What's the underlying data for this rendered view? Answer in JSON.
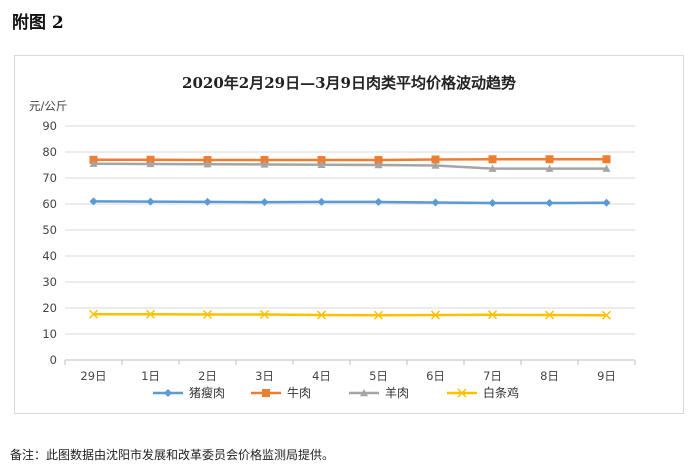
{
  "page": {
    "heading": "附图 2",
    "footnote": "备注：此图数据由沈阳市发展和改革委员会价格监测局提供。"
  },
  "chart_data": {
    "type": "line",
    "title": "2020年2月29日—3月9日肉类平均价格波动趋势",
    "ylabel": "元/公斤",
    "xlabel": "",
    "categories": [
      "29日",
      "1日",
      "2日",
      "3日",
      "4日",
      "5日",
      "6日",
      "7日",
      "8日",
      "9日"
    ],
    "ylim": [
      0,
      90
    ],
    "yticks": [
      0,
      10,
      20,
      30,
      40,
      50,
      60,
      70,
      80,
      90
    ],
    "grid": true,
    "legend_position": "bottom",
    "series": [
      {
        "name": "猪瘦肉",
        "color": "#5B9BD5",
        "marker": "diamond",
        "values": [
          61.0,
          60.9,
          60.8,
          60.7,
          60.8,
          60.8,
          60.6,
          60.4,
          60.4,
          60.5
        ]
      },
      {
        "name": "牛肉",
        "color": "#ED7D31",
        "marker": "square",
        "values": [
          77.0,
          77.0,
          76.9,
          76.9,
          76.9,
          76.9,
          77.1,
          77.2,
          77.2,
          77.2
        ]
      },
      {
        "name": "羊肉",
        "color": "#A5A5A5",
        "marker": "triangle",
        "values": [
          75.5,
          75.4,
          75.3,
          75.2,
          75.1,
          75.0,
          74.8,
          73.6,
          73.6,
          73.6
        ]
      },
      {
        "name": "白条鸡",
        "color": "#FFC000",
        "marker": "x",
        "values": [
          17.6,
          17.6,
          17.5,
          17.5,
          17.3,
          17.2,
          17.3,
          17.4,
          17.3,
          17.2
        ]
      }
    ]
  }
}
